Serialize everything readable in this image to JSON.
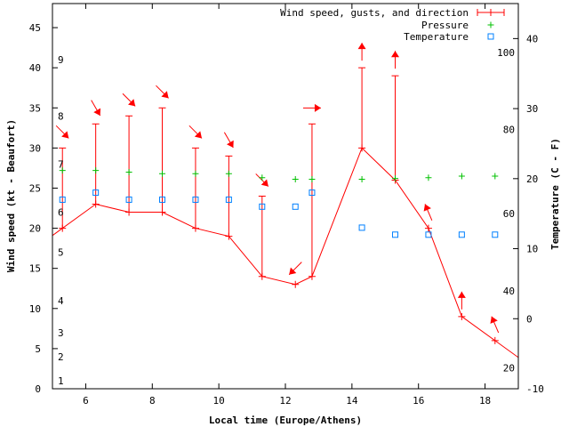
{
  "chart_data": {
    "type": "line",
    "xlabel": "Local time (Europe/Athens)",
    "ylabel": "Wind speed (kt - Beaufort)",
    "y2label": "Temperature (C - F)",
    "xlim": [
      5,
      19
    ],
    "ylim": [
      0,
      48
    ],
    "y2lim": [
      -10,
      45
    ],
    "xticks": [
      "6",
      "8",
      "10",
      "12",
      "14",
      "16",
      "18"
    ],
    "yticks": [
      "0",
      "5",
      "10",
      "15",
      "20",
      "25",
      "30",
      "35",
      "40",
      "45"
    ],
    "y2ticks": [
      "-10",
      "0",
      "10",
      "20",
      "30",
      "40"
    ],
    "beaufort_labels": [
      {
        "text": "1",
        "y": 1
      },
      {
        "text": "2",
        "y": 4
      },
      {
        "text": "3",
        "y": 7
      },
      {
        "text": "4",
        "y": 11
      },
      {
        "text": "5",
        "y": 17
      },
      {
        "text": "6",
        "y": 22
      },
      {
        "text": "7",
        "y": 28
      },
      {
        "text": "8",
        "y": 34
      },
      {
        "text": "9",
        "y": 41
      }
    ],
    "fahrenheit_labels": [
      {
        "text": "20",
        "y2": -7
      },
      {
        "text": "40",
        "y2": 4
      },
      {
        "text": "60",
        "y2": 15
      },
      {
        "text": "80",
        "y2": 27
      },
      {
        "text": "100",
        "y2": 38
      }
    ],
    "legend": {
      "position": "top-right",
      "entries": [
        {
          "label": "Wind speed, gusts, and direction",
          "color": "#ff0000"
        },
        {
          "label": "Pressure",
          "color": "#00c000"
        },
        {
          "label": "Temperature",
          "color": "#0080ff"
        }
      ]
    },
    "series": [
      {
        "name": "Wind speed, gusts, and direction",
        "color": "#ff0000",
        "x": [
          5.3,
          6.3,
          7.3,
          8.3,
          9.3,
          10.3,
          11.3,
          12.3,
          12.8,
          14.3,
          15.3,
          16.3,
          17.3,
          18.3
        ],
        "values": [
          20,
          23,
          22,
          22,
          20,
          19,
          14,
          13,
          14,
          30,
          26,
          20,
          9,
          6
        ],
        "gusts": [
          30,
          33,
          34,
          35,
          30,
          29,
          24,
          null,
          33,
          40,
          39,
          null,
          null,
          null
        ],
        "direction_deg": [
          135,
          150,
          135,
          135,
          135,
          150,
          135,
          225,
          90,
          0,
          0,
          337,
          0,
          337
        ]
      },
      {
        "name": "Pressure",
        "color": "#00c000",
        "x": [
          5.3,
          6.3,
          7.3,
          8.3,
          9.3,
          10.3,
          11.3,
          12.3,
          12.8,
          14.3,
          15.3,
          16.3,
          17.3,
          18.3
        ],
        "values": [
          27.2,
          27.2,
          27.0,
          26.8,
          26.8,
          26.8,
          26.3,
          26.1,
          26.1,
          26.1,
          26.2,
          26.3,
          26.5,
          26.5
        ]
      },
      {
        "name": "Temperature",
        "color": "#0080ff",
        "x": [
          5.3,
          6.3,
          7.3,
          8.3,
          9.3,
          10.3,
          11.3,
          12.3,
          12.8,
          14.3,
          15.3,
          16.3,
          17.3,
          18.3
        ],
        "values": [
          17,
          18,
          17,
          17,
          17,
          17,
          16,
          16,
          18,
          13,
          12,
          12,
          12,
          12
        ]
      }
    ]
  }
}
